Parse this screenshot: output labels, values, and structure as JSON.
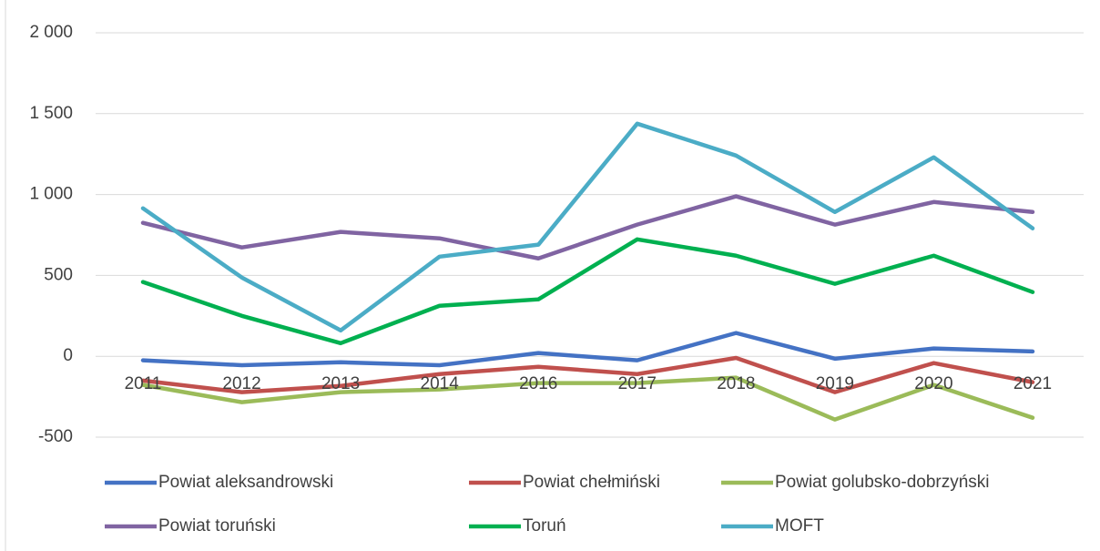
{
  "chart_data": {
    "type": "line",
    "categories": [
      "2011",
      "2012",
      "2013",
      "2014",
      "2016",
      "2017",
      "2018",
      "2019",
      "2020",
      "2021"
    ],
    "series": [
      {
        "name": "Powiat aleksandrowski",
        "color": "#4472c4",
        "values": [
          -25,
          -55,
          -37,
          -55,
          20,
          -25,
          144,
          -15,
          48,
          30
        ]
      },
      {
        "name": "Powiat chełmiński",
        "color": "#c0504d",
        "values": [
          -150,
          -222,
          -183,
          -110,
          -65,
          -110,
          -10,
          -222,
          -42,
          -160
        ]
      },
      {
        "name": "Powiat golubsko-dobrzyński",
        "color": "#9bbb59",
        "values": [
          -177,
          -284,
          -222,
          -205,
          -166,
          -166,
          -132,
          -391,
          -177,
          -380
        ]
      },
      {
        "name": "Powiat toruński",
        "color": "#8064a2",
        "values": [
          825,
          673,
          769,
          729,
          605,
          814,
          989,
          814,
          954,
          892
        ]
      },
      {
        "name": "Toruń",
        "color": "#00b050",
        "values": [
          459,
          250,
          81,
          312,
          352,
          723,
          622,
          448,
          622,
          397
        ]
      },
      {
        "name": "MOFT",
        "color": "#4bacc6",
        "values": [
          915,
          487,
          160,
          616,
          690,
          1438,
          1241,
          892,
          1230,
          791
        ]
      }
    ],
    "ylim": [
      -500,
      2000
    ],
    "yticks": [
      -500,
      0,
      500,
      {
        "value": 1000,
        "label": "1 000"
      },
      {
        "value": 1500,
        "label": "1 500"
      },
      {
        "value": 2000,
        "label": "2 000"
      }
    ],
    "grid": true,
    "legend": "bottom"
  }
}
